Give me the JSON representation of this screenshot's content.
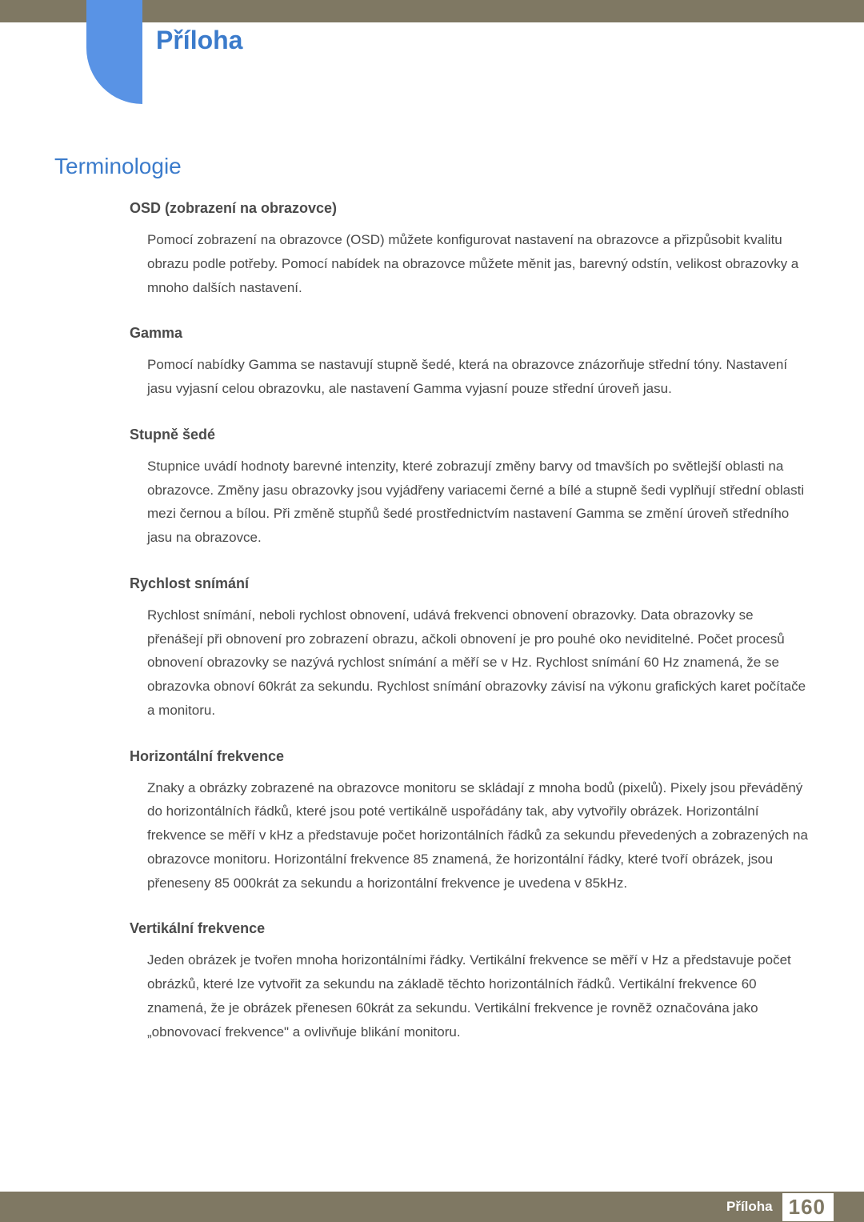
{
  "colors": {
    "header_bar": "#7f7863",
    "tab": "#5993e5",
    "title": "#3b7bcb",
    "body_text": "#4a4a4a",
    "page_bg": "#ffffff"
  },
  "header": {
    "title": "Příloha"
  },
  "section": {
    "title": "Terminologie"
  },
  "terms": [
    {
      "heading": "OSD (zobrazení na obrazovce)",
      "body": "Pomocí zobrazení na obrazovce (OSD) můžete konfigurovat nastavení na obrazovce a přizpůsobit kvalitu obrazu podle potřeby. Pomocí nabídek na obrazovce můžete měnit jas, barevný odstín, velikost obrazovky a mnoho dalších nastavení."
    },
    {
      "heading": "Gamma",
      "body": "Pomocí nabídky Gamma se nastavují stupně šedé, která na obrazovce znázorňuje střední tóny. Nastavení jasu vyjasní celou obrazovku, ale nastavení Gamma vyjasní pouze střední úroveň jasu."
    },
    {
      "heading": "Stupně šedé",
      "body": "Stupnice uvádí hodnoty barevné intenzity, které zobrazují změny barvy od tmavších po světlejší oblasti na obrazovce. Změny jasu obrazovky jsou vyjádřeny variacemi černé a bílé a stupně šedi vyplňují střední oblasti mezi černou a bílou. Při změně stupňů šedé prostřednictvím nastavení Gamma se změní úroveň středního jasu na obrazovce."
    },
    {
      "heading": "Rychlost snímání",
      "body": "Rychlost snímání, neboli rychlost obnovení, udává frekvenci obnovení obrazovky. Data obrazovky se přenášejí při obnovení pro zobrazení obrazu, ačkoli obnovení je pro pouhé oko neviditelné. Počet procesů obnovení obrazovky se nazývá rychlost snímání a měří se v Hz. Rychlost snímání 60 Hz znamená, že se obrazovka obnoví 60krát za sekundu. Rychlost snímání obrazovky závisí na výkonu grafických karet počítače a monitoru."
    },
    {
      "heading": "Horizontální frekvence",
      "body": "Znaky a obrázky zobrazené na obrazovce monitoru se skládají z mnoha bodů (pixelů). Pixely jsou převáděný do horizontálních řádků, které jsou poté vertikálně uspořádány tak, aby vytvořily obrázek. Horizontální frekvence se měří v kHz a představuje počet horizontálních řádků za sekundu převedených a zobrazených na obrazovce monitoru. Horizontální frekvence 85 znamená, že horizontální řádky, které tvoří obrázek, jsou přeneseny 85 000krát za sekundu a horizontální frekvence je uvedena v 85kHz."
    },
    {
      "heading": "Vertikální frekvence",
      "body": "Jeden obrázek je tvořen mnoha horizontálními řádky. Vertikální frekvence se měří v Hz a představuje počet obrázků, které lze vytvořit za sekundu na základě těchto horizontálních řádků. Vertikální frekvence 60 znamená, že je obrázek přenesen 60krát za sekundu. Vertikální frekvence je rovněž označována jako „obnovovací frekvence\" a ovlivňuje blikání monitoru."
    }
  ],
  "footer": {
    "label": "Příloha",
    "page_number": "160"
  }
}
